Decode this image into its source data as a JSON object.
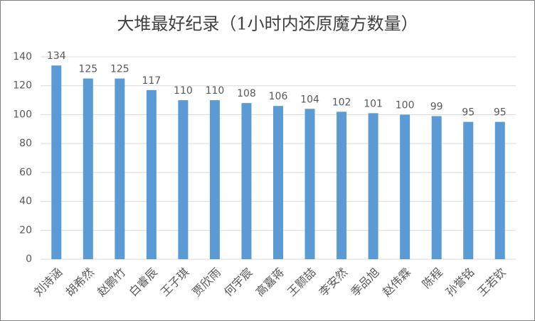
{
  "chart_data": {
    "type": "bar",
    "title": "大堆最好纪录（1小时内还原魔方数量）",
    "categories": [
      "刘诗涵",
      "胡希然",
      "赵鹏竹",
      "白睿辰",
      "王子琪",
      "贾欣雨",
      "何宇宸",
      "高嘉蒋",
      "王颢喆",
      "李安然",
      "季品旭",
      "赵伟霖",
      "陈程",
      "孙誉铭",
      "王若钦"
    ],
    "values": [
      134,
      125,
      125,
      117,
      110,
      110,
      108,
      106,
      104,
      102,
      101,
      100,
      99,
      95,
      95
    ],
    "color": "#5b9bd5",
    "ylim": [
      0,
      140
    ],
    "yticks": [
      0,
      20,
      40,
      60,
      80,
      100,
      120,
      140
    ],
    "grid": true
  }
}
